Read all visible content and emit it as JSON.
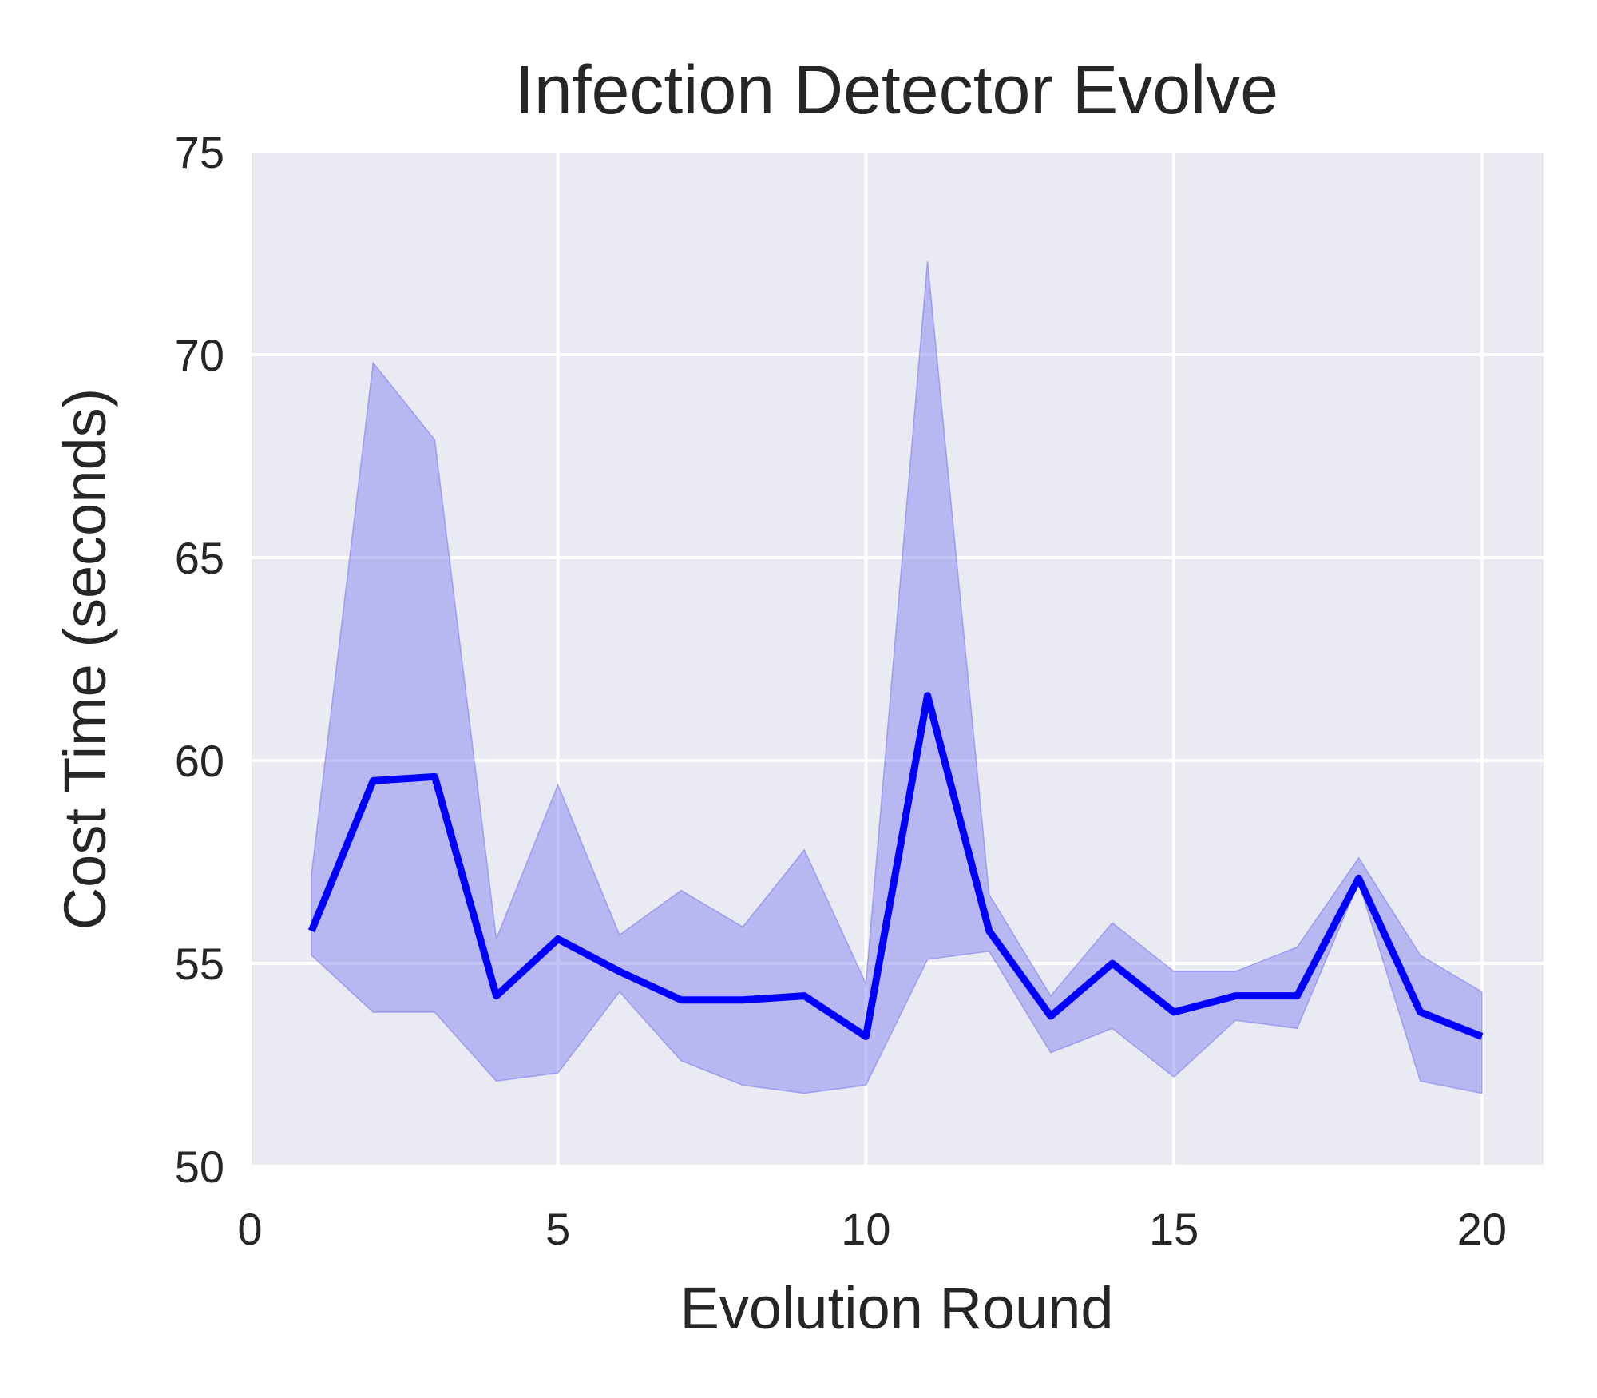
{
  "chart_data": {
    "type": "line",
    "title": "Infection Detector Evolve",
    "xlabel": "Evolution Round",
    "ylabel": "Cost Time (seconds)",
    "xlim": [
      0,
      21
    ],
    "ylim": [
      50,
      75
    ],
    "xticks": [
      0,
      5,
      10,
      15,
      20
    ],
    "yticks": [
      50,
      55,
      60,
      65,
      70,
      75
    ],
    "grid": true,
    "legend": "none",
    "colors": {
      "line": "#0000ff",
      "band": "#7b7bef",
      "background": "#eaeaf2",
      "grid": "#ffffff"
    },
    "series": [
      {
        "x": [
          1,
          2,
          3,
          4,
          5,
          6,
          7,
          8,
          9,
          10,
          11,
          12,
          13,
          14,
          15,
          16,
          17,
          18,
          19,
          20
        ],
        "mean": [
          55.8,
          59.5,
          59.6,
          54.2,
          55.6,
          54.8,
          54.1,
          54.1,
          54.2,
          53.2,
          61.6,
          55.8,
          53.7,
          55.0,
          53.8,
          54.2,
          54.2,
          57.1,
          53.8,
          53.2
        ],
        "lower": [
          55.2,
          53.8,
          53.8,
          52.1,
          52.3,
          54.3,
          52.6,
          52.0,
          51.8,
          52.0,
          55.1,
          55.3,
          52.8,
          53.4,
          52.2,
          53.6,
          53.4,
          57.0,
          52.1,
          51.8
        ],
        "upper": [
          57.2,
          69.8,
          67.9,
          55.6,
          59.4,
          55.7,
          56.8,
          55.9,
          57.8,
          54.5,
          72.3,
          56.7,
          54.2,
          56.0,
          54.8,
          54.8,
          55.4,
          57.6,
          55.2,
          54.3
        ]
      }
    ]
  }
}
